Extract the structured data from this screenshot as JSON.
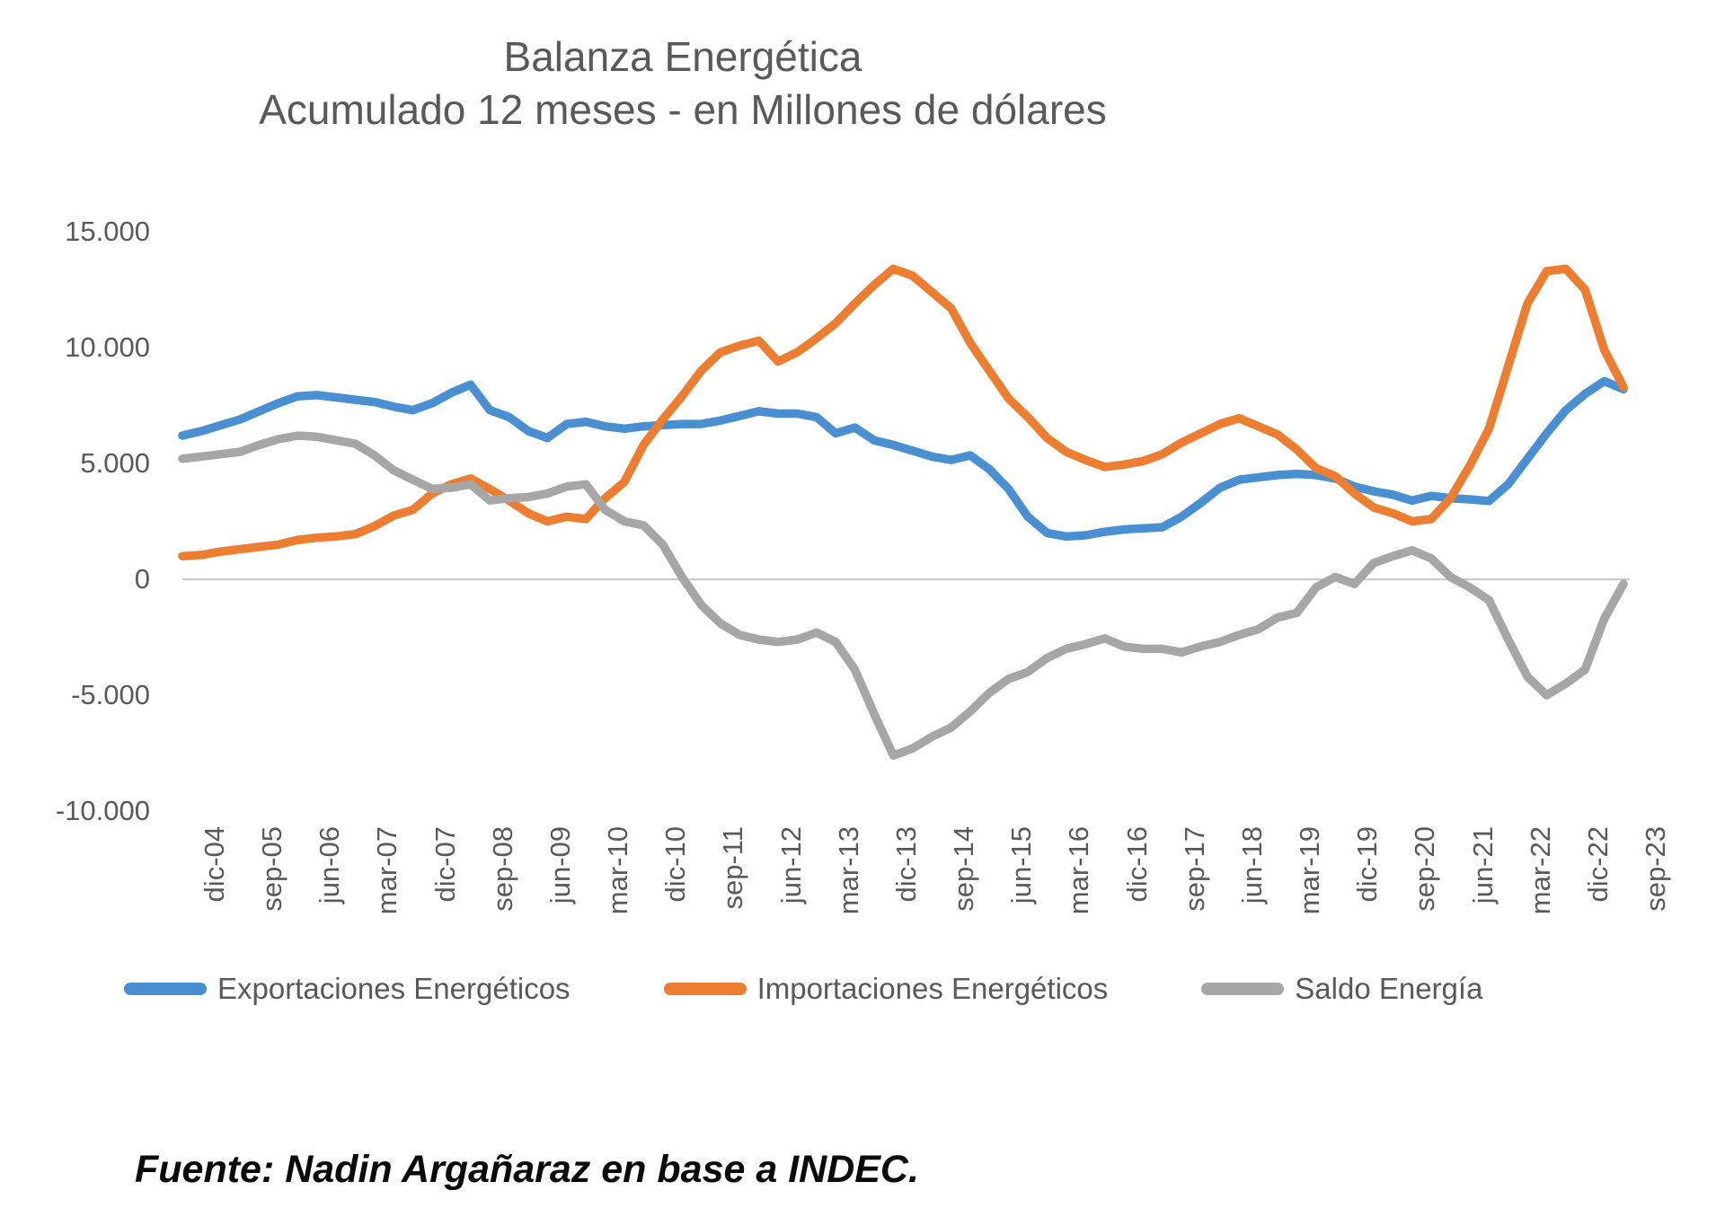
{
  "title": {
    "line1": "Balanza Energética",
    "line2": "Acumulado 12 meses - en Millones de dólares"
  },
  "footer": {
    "source": "Fuente: Nadin Argañaraz en base a INDEC."
  },
  "colors": {
    "exportaciones": "#4A8FD2",
    "importaciones": "#ED7D31",
    "saldo": "#A6A6A6",
    "axis_text": "#595959",
    "zero_gridline": "#C8C8C8"
  },
  "legend": [
    {
      "label": "Exportaciones Energéticos",
      "color": "#4A8FD2"
    },
    {
      "label": "Importaciones Energéticos",
      "color": "#ED7D31"
    },
    {
      "label": "Saldo Energía",
      "color": "#A6A6A6"
    }
  ],
  "chart_data": {
    "type": "line",
    "title": "Balanza Energética",
    "subtitle": "Acumulado 12 meses - en Millones de dólares",
    "unit": "Millones de dólares",
    "grid": "zero-line-only",
    "legend_position": "bottom",
    "y_axis": {
      "ticks": [
        {
          "label": "15.000",
          "value": 15000
        },
        {
          "label": "10.000",
          "value": 10000
        },
        {
          "label": "5.000",
          "value": 5000
        },
        {
          "label": "0",
          "value": 0
        },
        {
          "label": "-5.000",
          "value": -5000
        },
        {
          "label": "-10.000",
          "value": -10000
        }
      ],
      "range": [
        -10000,
        15000
      ]
    },
    "x_axis": {
      "tick_labels": [
        "dic-04",
        "sep-05",
        "jun-06",
        "mar-07",
        "dic-07",
        "sep-08",
        "jun-09",
        "mar-10",
        "dic-10",
        "sep-11",
        "jun-12",
        "mar-13",
        "dic-13",
        "sep-14",
        "jun-15",
        "mar-16",
        "dic-16",
        "sep-17",
        "jun-18",
        "mar-19",
        "dic-19",
        "sep-20",
        "jun-21",
        "mar-22",
        "dic-22",
        "sep-23"
      ],
      "tick_interval_months": 9,
      "start": "dic-04",
      "end": "sep-23"
    },
    "sampling": "quarterly (3-month steps) from dic-04 to sep-23, values in millions of USD estimated from plot",
    "series": [
      {
        "name": "Exportaciones Energéticos",
        "color": "#4A8FD2",
        "values": [
          6200,
          6400,
          6650,
          6900,
          7250,
          7600,
          7900,
          7950,
          7850,
          7750,
          7650,
          7450,
          7300,
          7600,
          8050,
          8400,
          7300,
          7000,
          6400,
          6100,
          6700,
          6800,
          6600,
          6500,
          6600,
          6650,
          6700,
          6700,
          6850,
          7050,
          7250,
          7150,
          7150,
          7000,
          6300,
          6550,
          6000,
          5800,
          5550,
          5300,
          5150,
          5350,
          4750,
          3900,
          2700,
          2000,
          1850,
          1900,
          2050,
          2150,
          2200,
          2250,
          2700,
          3300,
          3950,
          4300,
          4400,
          4500,
          4550,
          4500,
          4350,
          4000,
          3800,
          3650,
          3400,
          3600,
          3500,
          3450,
          3380,
          4100,
          5200,
          6300,
          7300,
          8000,
          8550,
          8200
        ]
      },
      {
        "name": "Importaciones Energéticos",
        "color": "#ED7D31",
        "values": [
          1000,
          1050,
          1200,
          1300,
          1400,
          1500,
          1700,
          1800,
          1850,
          1950,
          2300,
          2750,
          3000,
          3700,
          4100,
          4350,
          3900,
          3400,
          2850,
          2500,
          2700,
          2600,
          3500,
          4200,
          5800,
          6900,
          7900,
          9000,
          9800,
          10080,
          10300,
          9400,
          9800,
          10400,
          11050,
          11900,
          12700,
          13400,
          13100,
          12400,
          11700,
          10200,
          9000,
          7800,
          7000,
          6100,
          5500,
          5150,
          4850,
          4950,
          5100,
          5400,
          5900,
          6300,
          6700,
          6950,
          6600,
          6250,
          5600,
          4800,
          4450,
          3700,
          3100,
          2850,
          2500,
          2600,
          3500,
          4900,
          6500,
          9200,
          11900,
          13300,
          13400,
          12500,
          9900,
          8300
        ]
      },
      {
        "name": "Saldo Energía",
        "color": "#A6A6A6",
        "values": [
          5200,
          5300,
          5400,
          5500,
          5800,
          6050,
          6200,
          6150,
          6000,
          5850,
          5350,
          4700,
          4300,
          3900,
          3950,
          4100,
          3400,
          3500,
          3550,
          3700,
          4000,
          4100,
          3000,
          2500,
          2330,
          1500,
          100,
          -1100,
          -1900,
          -2400,
          -2600,
          -2700,
          -2600,
          -2300,
          -2700,
          -3900,
          -5800,
          -7600,
          -7300,
          -6800,
          -6400,
          -5700,
          -4900,
          -4300,
          -4000,
          -3400,
          -3000,
          -2800,
          -2550,
          -2900,
          -3000,
          -3000,
          -3150,
          -2900,
          -2700,
          -2400,
          -2150,
          -1650,
          -1450,
          -350,
          100,
          -200,
          700,
          1000,
          1250,
          900,
          100,
          -350,
          -900,
          -2600,
          -4200,
          -5000,
          -4500,
          -3900,
          -1700,
          -200
        ]
      }
    ]
  }
}
